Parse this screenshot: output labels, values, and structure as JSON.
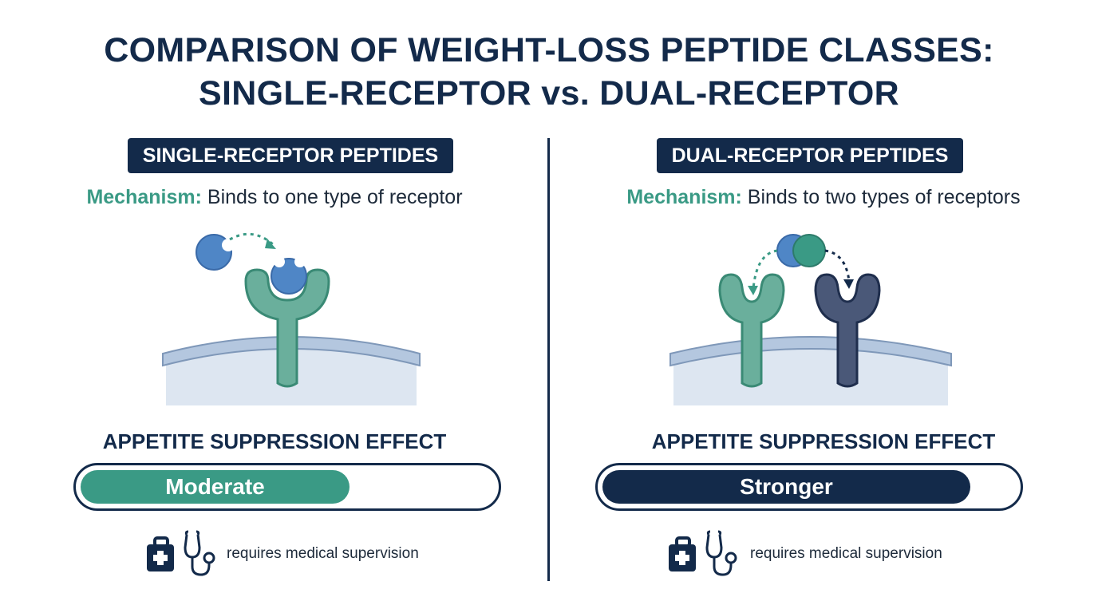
{
  "title": {
    "line1": "COMPARISON OF WEIGHT-LOSS PEPTIDE CLASSES:",
    "line2": "SINGLE-RECEPTOR vs. DUAL-RECEPTOR"
  },
  "colors": {
    "navy": "#132a4a",
    "teal": "#3a9a85",
    "receptor_green": "#6aaf9c",
    "receptor_navy": "#4a5878",
    "peptide_blue": "#4f86c6",
    "membrane": "#dde6f1"
  },
  "left": {
    "header": "SINGLE-RECEPTOR PEPTIDES",
    "mechanism_label": "Mechanism:",
    "mechanism_text": "Binds to one type of receptor",
    "effect_heading": "APPETITE SUPPRESSION EFFECT",
    "effect_value": "Moderate",
    "effect_level": 0.65,
    "note": "requires medical supervision",
    "icons": [
      "medical-kit-icon",
      "stethoscope-icon"
    ]
  },
  "right": {
    "header": "DUAL-RECEPTOR PEPTIDES",
    "mechanism_label": "Mechanism:",
    "mechanism_text": "Binds to two types of receptors",
    "effect_heading": "APPETITE SUPPRESSION EFFECT",
    "effect_value": "Stronger",
    "effect_level": 0.89,
    "note": "requires medical supervision",
    "icons": [
      "medical-kit-icon",
      "stethoscope-icon"
    ]
  }
}
